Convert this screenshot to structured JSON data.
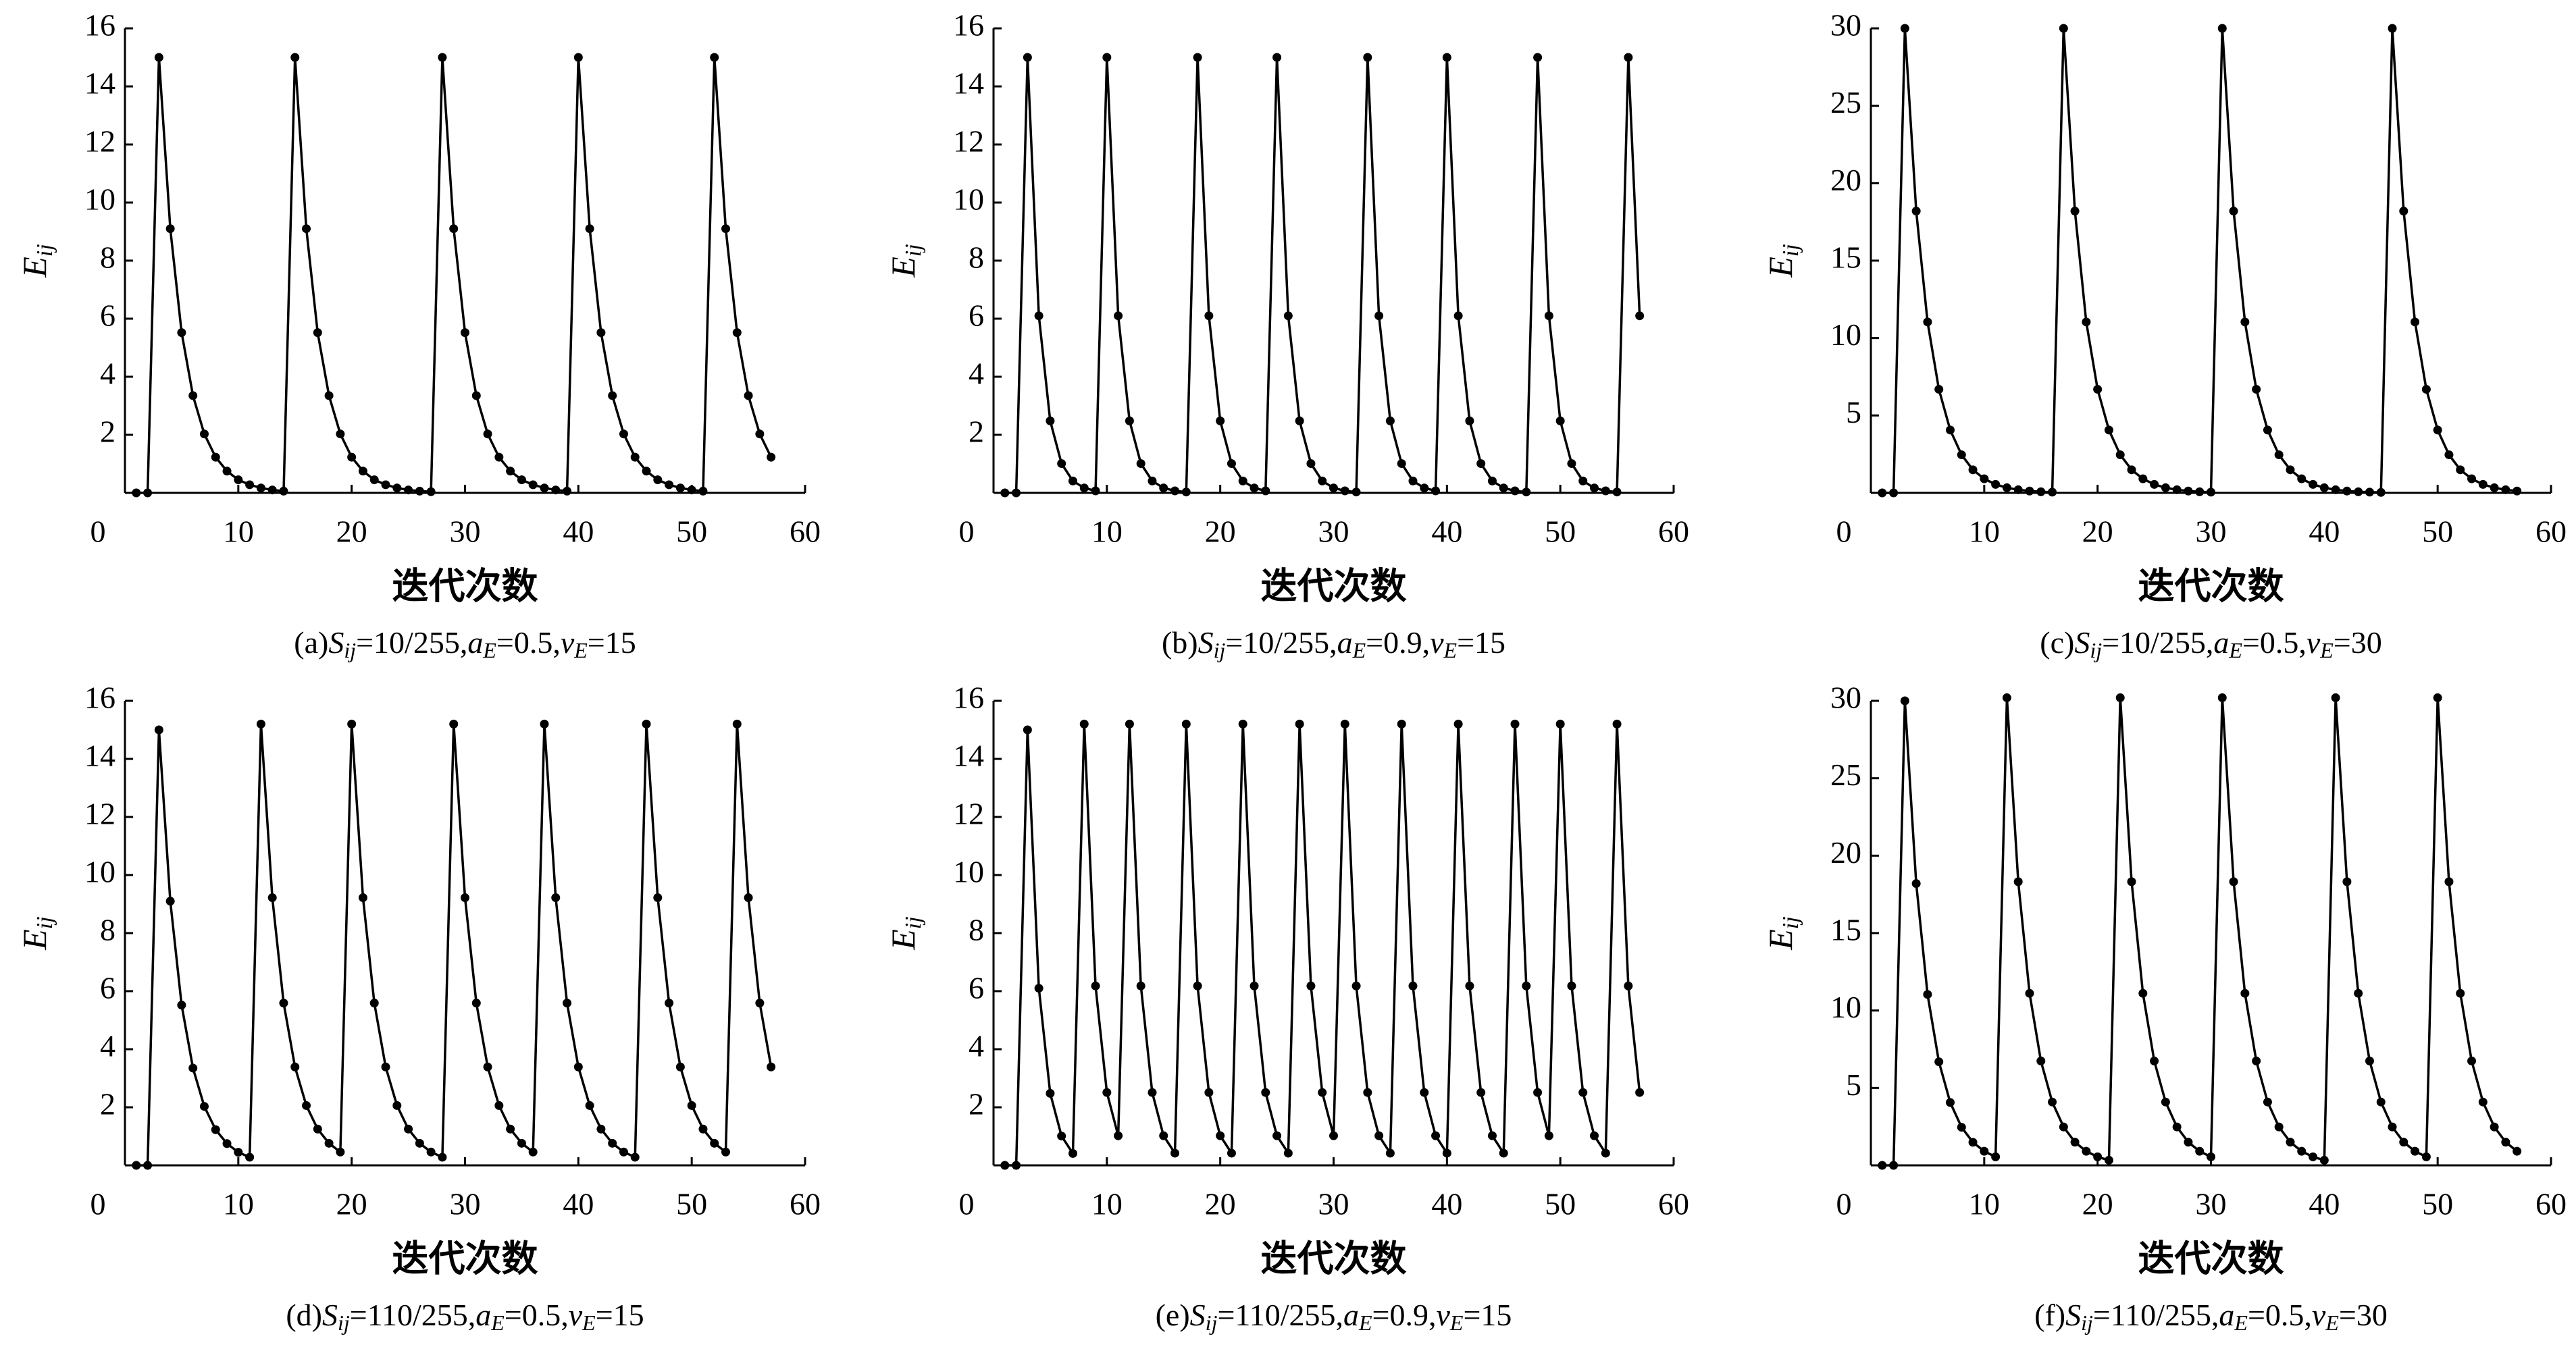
{
  "chart_data": [
    {
      "type": "line",
      "caption": [
        "(a)",
        "S",
        "ij",
        "=10/255,",
        "a",
        "E",
        "=0.5,",
        "v",
        "E",
        "=15"
      ],
      "xlabel": "迭代次数",
      "ylabel": [
        "E",
        "ij"
      ],
      "color": "#000000",
      "x": [
        1,
        2,
        3,
        4,
        5,
        6,
        7,
        8,
        9,
        10,
        11,
        12,
        13,
        14,
        15,
        16,
        17,
        18,
        19,
        20,
        21,
        22,
        23,
        24,
        25,
        26,
        27,
        28,
        29,
        30,
        31,
        32,
        33,
        34,
        35,
        36,
        37,
        38,
        39,
        40,
        41,
        42,
        43,
        44,
        45,
        46,
        47,
        48,
        49,
        50,
        51,
        52,
        53,
        54,
        55,
        56,
        57
      ],
      "values": [
        0,
        0,
        15,
        9.1,
        5.52,
        3.35,
        2.03,
        1.23,
        0.75,
        0.45,
        0.28,
        0.17,
        0.1,
        0.06,
        15,
        9.1,
        5.52,
        3.35,
        2.03,
        1.23,
        0.75,
        0.45,
        0.28,
        0.17,
        0.1,
        0.06,
        0.04,
        15,
        9.1,
        5.52,
        3.35,
        2.03,
        1.23,
        0.75,
        0.45,
        0.28,
        0.17,
        0.1,
        0.06,
        15,
        9.1,
        5.52,
        3.35,
        2.03,
        1.23,
        0.75,
        0.45,
        0.28,
        0.17,
        0.1,
        0.06,
        15,
        9.1,
        5.52,
        3.35,
        2.03,
        1.23
      ],
      "xlim": [
        0,
        60
      ],
      "xticks": [
        0,
        10,
        20,
        30,
        40,
        50,
        60
      ],
      "ylim": [
        0,
        16
      ],
      "yticks": [
        2,
        4,
        6,
        8,
        10,
        12,
        14,
        16
      ]
    },
    {
      "type": "line",
      "caption": [
        "(b)",
        "S",
        "ij",
        "=10/255,",
        "a",
        "E",
        "=0.9,",
        "v",
        "E",
        "=15"
      ],
      "xlabel": "迭代次数",
      "ylabel": [
        "E",
        "ij"
      ],
      "color": "#000000",
      "x": [
        1,
        2,
        3,
        4,
        5,
        6,
        7,
        8,
        9,
        10,
        11,
        12,
        13,
        14,
        15,
        16,
        17,
        18,
        19,
        20,
        21,
        22,
        23,
        24,
        25,
        26,
        27,
        28,
        29,
        30,
        31,
        32,
        33,
        34,
        35,
        36,
        37,
        38,
        39,
        40,
        41,
        42,
        43,
        44,
        45,
        46,
        47,
        48,
        49,
        50,
        51,
        52,
        53,
        54,
        55,
        56,
        57
      ],
      "values": [
        0,
        0,
        15,
        6.1,
        2.48,
        1.01,
        0.41,
        0.17,
        0.07,
        15,
        6.1,
        2.48,
        1.01,
        0.41,
        0.17,
        0.07,
        0.03,
        15,
        6.1,
        2.48,
        1.01,
        0.41,
        0.17,
        0.07,
        15,
        6.1,
        2.48,
        1.01,
        0.41,
        0.17,
        0.07,
        0.03,
        15,
        6.1,
        2.48,
        1.01,
        0.41,
        0.17,
        0.07,
        15,
        6.1,
        2.48,
        1.01,
        0.41,
        0.17,
        0.07,
        0.03,
        15,
        6.1,
        2.48,
        1.01,
        0.41,
        0.17,
        0.07,
        0.03,
        15,
        6.1
      ],
      "xlim": [
        0,
        60
      ],
      "xticks": [
        0,
        10,
        20,
        30,
        40,
        50,
        60
      ],
      "ylim": [
        0,
        16
      ],
      "yticks": [
        2,
        4,
        6,
        8,
        10,
        12,
        14,
        16
      ]
    },
    {
      "type": "line",
      "caption": [
        "(c)",
        "S",
        "ij",
        "=10/255,",
        "a",
        "E",
        "=0.5,",
        "v",
        "E",
        "=30"
      ],
      "xlabel": "迭代次数",
      "ylabel": [
        "E",
        "ij"
      ],
      "color": "#000000",
      "x": [
        1,
        2,
        3,
        4,
        5,
        6,
        7,
        8,
        9,
        10,
        11,
        12,
        13,
        14,
        15,
        16,
        17,
        18,
        19,
        20,
        21,
        22,
        23,
        24,
        25,
        26,
        27,
        28,
        29,
        30,
        31,
        32,
        33,
        34,
        35,
        36,
        37,
        38,
        39,
        40,
        41,
        42,
        43,
        44,
        45,
        46,
        47,
        48,
        49,
        50,
        51,
        52,
        53,
        54,
        55,
        56,
        57
      ],
      "values": [
        0,
        0,
        30,
        18.2,
        11.04,
        6.69,
        4.06,
        2.46,
        1.49,
        0.91,
        0.55,
        0.33,
        0.2,
        0.12,
        0.07,
        0.05,
        30,
        18.2,
        11.04,
        6.69,
        4.06,
        2.46,
        1.49,
        0.91,
        0.55,
        0.33,
        0.2,
        0.12,
        0.07,
        0.05,
        30,
        18.2,
        11.04,
        6.69,
        4.06,
        2.46,
        1.49,
        0.91,
        0.55,
        0.33,
        0.2,
        0.12,
        0.07,
        0.05,
        0.03,
        30,
        18.2,
        11.04,
        6.69,
        4.06,
        2.46,
        1.49,
        0.91,
        0.55,
        0.33,
        0.2,
        0.12
      ],
      "xlim": [
        0,
        60
      ],
      "xticks": [
        0,
        10,
        20,
        30,
        40,
        50,
        60
      ],
      "ylim": [
        0,
        30
      ],
      "yticks": [
        5,
        10,
        15,
        20,
        25,
        30
      ]
    },
    {
      "type": "line",
      "caption": [
        "(d)",
        "S",
        "ij",
        "=110/255,",
        "a",
        "E",
        "=0.5,",
        "v",
        "E",
        "=15"
      ],
      "xlabel": "迭代次数",
      "ylabel": [
        "E",
        "ij"
      ],
      "color": "#000000",
      "x": [
        1,
        2,
        3,
        4,
        5,
        6,
        7,
        8,
        9,
        10,
        11,
        12,
        13,
        14,
        15,
        16,
        17,
        18,
        19,
        20,
        21,
        22,
        23,
        24,
        25,
        26,
        27,
        28,
        29,
        30,
        31,
        32,
        33,
        34,
        35,
        36,
        37,
        38,
        39,
        40,
        41,
        42,
        43,
        44,
        45,
        46,
        47,
        48,
        49,
        50,
        51,
        52,
        53,
        54,
        55,
        56,
        57
      ],
      "values": [
        0,
        0,
        15,
        9.1,
        5.52,
        3.35,
        2.03,
        1.23,
        0.75,
        0.45,
        0.28,
        15.2,
        9.22,
        5.59,
        3.39,
        2.06,
        1.25,
        0.76,
        0.46,
        15.2,
        9.22,
        5.59,
        3.39,
        2.06,
        1.25,
        0.76,
        0.46,
        0.28,
        15.2,
        9.22,
        5.59,
        3.39,
        2.06,
        1.25,
        0.76,
        0.46,
        15.2,
        9.22,
        5.59,
        3.39,
        2.06,
        1.25,
        0.76,
        0.46,
        0.28,
        15.2,
        9.22,
        5.59,
        3.39,
        2.06,
        1.25,
        0.76,
        0.46,
        15.2,
        9.22,
        5.59,
        3.39
      ],
      "xlim": [
        0,
        60
      ],
      "xticks": [
        0,
        10,
        20,
        30,
        40,
        50,
        60
      ],
      "ylim": [
        0,
        16
      ],
      "yticks": [
        2,
        4,
        6,
        8,
        10,
        12,
        14,
        16
      ]
    },
    {
      "type": "line",
      "caption": [
        "(e)",
        "S",
        "ij",
        "=110/255,",
        "a",
        "E",
        "=0.9,",
        "v",
        "E",
        "=15"
      ],
      "xlabel": "迭代次数",
      "ylabel": [
        "E",
        "ij"
      ],
      "color": "#000000",
      "x": [
        1,
        2,
        3,
        4,
        5,
        6,
        7,
        8,
        9,
        10,
        11,
        12,
        13,
        14,
        15,
        16,
        17,
        18,
        19,
        20,
        21,
        22,
        23,
        24,
        25,
        26,
        27,
        28,
        29,
        30,
        31,
        32,
        33,
        34,
        35,
        36,
        37,
        38,
        39,
        40,
        41,
        42,
        43,
        44,
        45,
        46,
        47,
        48,
        49,
        50,
        51,
        52,
        53,
        54,
        55,
        56,
        57
      ],
      "values": [
        0,
        0,
        15,
        6.1,
        2.48,
        1.01,
        0.41,
        15.2,
        6.18,
        2.51,
        1.02,
        15.2,
        6.18,
        2.51,
        1.02,
        0.42,
        15.2,
        6.18,
        2.51,
        1.02,
        0.42,
        15.2,
        6.18,
        2.51,
        1.02,
        0.42,
        15.2,
        6.18,
        2.51,
        1.02,
        15.2,
        6.18,
        2.51,
        1.02,
        0.42,
        15.2,
        6.18,
        2.51,
        1.02,
        0.42,
        15.2,
        6.18,
        2.51,
        1.02,
        0.42,
        15.2,
        6.18,
        2.51,
        1.02,
        15.2,
        6.18,
        2.51,
        1.02,
        0.42,
        15.2,
        6.18,
        2.51
      ],
      "xlim": [
        0,
        60
      ],
      "xticks": [
        0,
        10,
        20,
        30,
        40,
        50,
        60
      ],
      "ylim": [
        0,
        16
      ],
      "yticks": [
        2,
        4,
        6,
        8,
        10,
        12,
        14,
        16
      ]
    },
    {
      "type": "line",
      "caption": [
        "(f)",
        "S",
        "ij",
        "=110/255,",
        "a",
        "E",
        "=0.5,",
        "v",
        "E",
        "=30"
      ],
      "xlabel": "迭代次数",
      "ylabel": [
        "E",
        "ij"
      ],
      "color": "#000000",
      "x": [
        1,
        2,
        3,
        4,
        5,
        6,
        7,
        8,
        9,
        10,
        11,
        12,
        13,
        14,
        15,
        16,
        17,
        18,
        19,
        20,
        21,
        22,
        23,
        24,
        25,
        26,
        27,
        28,
        29,
        30,
        31,
        32,
        33,
        34,
        35,
        36,
        37,
        38,
        39,
        40,
        41,
        42,
        43,
        44,
        45,
        46,
        47,
        48,
        49,
        50,
        51,
        52,
        53,
        54,
        55,
        56,
        57
      ],
      "values": [
        0,
        0,
        30,
        18.2,
        11.04,
        6.69,
        4.06,
        2.46,
        1.49,
        0.91,
        0.55,
        30.2,
        18.32,
        11.11,
        6.74,
        4.09,
        2.48,
        1.5,
        0.91,
        0.55,
        0.33,
        30.2,
        18.32,
        11.11,
        6.74,
        4.09,
        2.48,
        1.5,
        0.91,
        0.55,
        30.2,
        18.32,
        11.11,
        6.74,
        4.09,
        2.48,
        1.5,
        0.91,
        0.55,
        0.33,
        30.2,
        18.32,
        11.11,
        6.74,
        4.09,
        2.48,
        1.5,
        0.91,
        0.55,
        30.2,
        18.32,
        11.11,
        6.74,
        4.09,
        2.48,
        1.5,
        0.91
      ],
      "xlim": [
        0,
        60
      ],
      "xticks": [
        0,
        10,
        20,
        30,
        40,
        50,
        60
      ],
      "ylim": [
        0,
        30
      ],
      "yticks": [
        5,
        10,
        15,
        20,
        25,
        30
      ]
    }
  ]
}
